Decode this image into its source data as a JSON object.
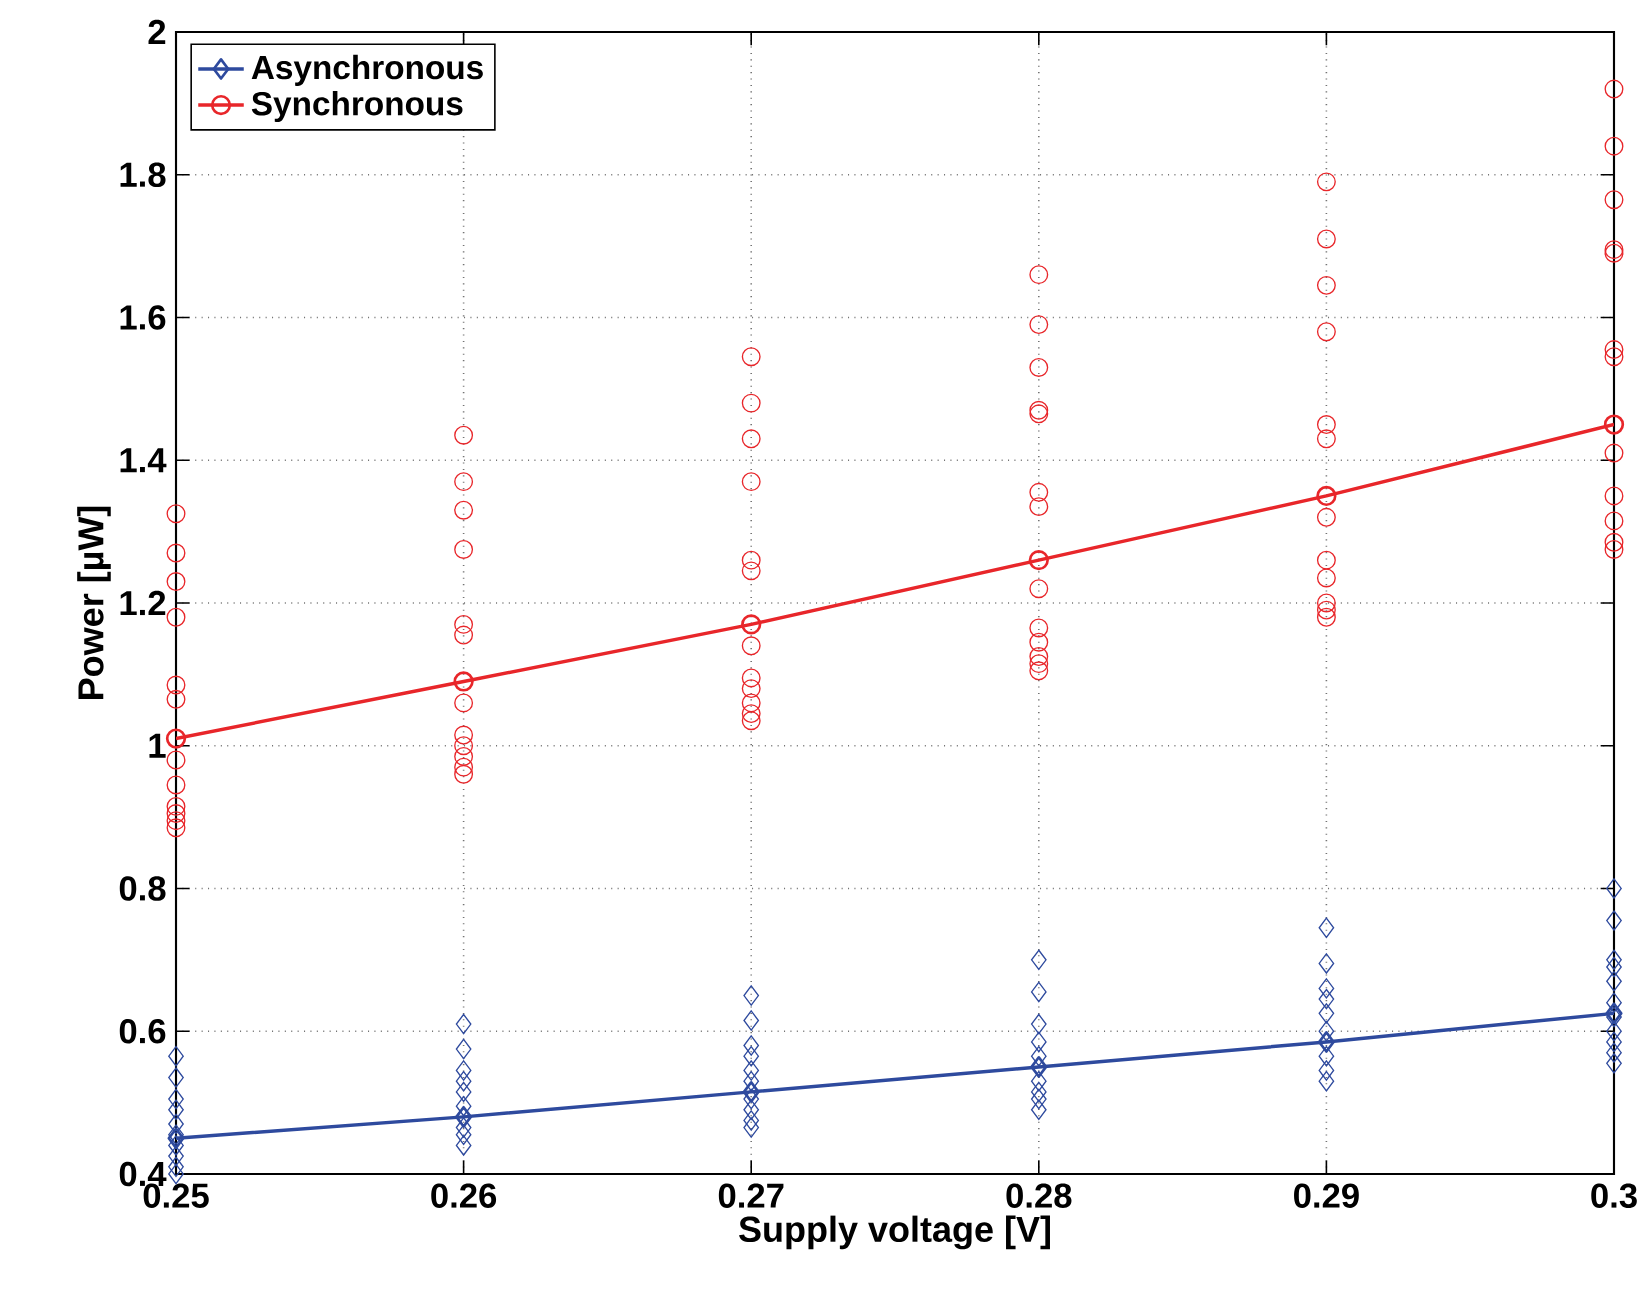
{
  "chart_data": {
    "type": "line",
    "xlabel": "Supply voltage [V]",
    "ylabel": "Power [µW]",
    "xlim": [
      0.25,
      0.3
    ],
    "xticks": [
      0.25,
      0.26,
      0.27,
      0.28,
      0.29,
      0.3
    ],
    "ylim": [
      0.4,
      2
    ],
    "yticks": [
      0.4,
      0.6,
      0.8,
      1,
      1.2,
      1.4,
      1.6,
      1.8,
      2
    ],
    "grid": true,
    "legend": "top left",
    "line_style": "solid",
    "series": [
      {
        "type": "scatter",
        "color": "#2e4a9e",
        "marker": "diamond",
        "x": [
          0.25,
          0.25,
          0.25,
          0.25,
          0.25,
          0.25,
          0.25,
          0.25,
          0.25,
          0.25,
          0.26,
          0.26,
          0.26,
          0.26,
          0.26,
          0.26,
          0.26,
          0.26,
          0.26,
          0.26,
          0.27,
          0.27,
          0.27,
          0.27,
          0.27,
          0.27,
          0.27,
          0.27,
          0.27,
          0.27,
          0.28,
          0.28,
          0.28,
          0.28,
          0.28,
          0.28,
          0.28,
          0.28,
          0.28,
          0.29,
          0.29,
          0.29,
          0.29,
          0.29,
          0.29,
          0.29,
          0.29,
          0.29,
          0.3,
          0.3,
          0.3,
          0.3,
          0.3,
          0.3,
          0.3,
          0.3,
          0.3,
          0.3,
          0.3
        ],
        "values": [
          0.565,
          0.535,
          0.505,
          0.49,
          0.47,
          0.455,
          0.44,
          0.425,
          0.41,
          0.4,
          0.61,
          0.575,
          0.545,
          0.53,
          0.515,
          0.495,
          0.48,
          0.465,
          0.455,
          0.44,
          0.65,
          0.615,
          0.58,
          0.565,
          0.545,
          0.53,
          0.505,
          0.49,
          0.475,
          0.465,
          0.7,
          0.655,
          0.61,
          0.585,
          0.565,
          0.53,
          0.515,
          0.505,
          0.49,
          0.745,
          0.695,
          0.66,
          0.645,
          0.625,
          0.6,
          0.565,
          0.545,
          0.53,
          0.8,
          0.755,
          0.7,
          0.69,
          0.67,
          0.64,
          0.62,
          0.6,
          0.585,
          0.57,
          0.555
        ]
      },
      {
        "type": "scatter",
        "color": "#e8262a",
        "marker": "circle",
        "x": [
          0.25,
          0.25,
          0.25,
          0.25,
          0.25,
          0.25,
          0.25,
          0.25,
          0.25,
          0.25,
          0.25,
          0.25,
          0.26,
          0.26,
          0.26,
          0.26,
          0.26,
          0.26,
          0.26,
          0.26,
          0.26,
          0.26,
          0.26,
          0.26,
          0.27,
          0.27,
          0.27,
          0.27,
          0.27,
          0.27,
          0.27,
          0.27,
          0.27,
          0.27,
          0.27,
          0.27,
          0.28,
          0.28,
          0.28,
          0.28,
          0.28,
          0.28,
          0.28,
          0.28,
          0.28,
          0.28,
          0.28,
          0.28,
          0.28,
          0.29,
          0.29,
          0.29,
          0.29,
          0.29,
          0.29,
          0.29,
          0.29,
          0.29,
          0.29,
          0.29,
          0.29,
          0.3,
          0.3,
          0.3,
          0.3,
          0.3,
          0.3,
          0.3,
          0.3,
          0.3,
          0.3,
          0.3,
          0.3
        ],
        "values": [
          1.325,
          1.27,
          1.23,
          1.18,
          1.085,
          1.065,
          0.98,
          0.945,
          0.915,
          0.905,
          0.895,
          0.885,
          1.435,
          1.37,
          1.33,
          1.275,
          1.17,
          1.155,
          1.06,
          1.015,
          1.0,
          0.985,
          0.97,
          0.96,
          1.545,
          1.48,
          1.43,
          1.37,
          1.26,
          1.245,
          1.14,
          1.095,
          1.08,
          1.06,
          1.045,
          1.035,
          1.66,
          1.59,
          1.53,
          1.47,
          1.465,
          1.355,
          1.335,
          1.22,
          1.165,
          1.145,
          1.125,
          1.115,
          1.105,
          1.79,
          1.71,
          1.645,
          1.58,
          1.45,
          1.43,
          1.32,
          1.26,
          1.235,
          1.2,
          1.19,
          1.18,
          1.92,
          1.84,
          1.765,
          1.695,
          1.69,
          1.555,
          1.545,
          1.41,
          1.35,
          1.315,
          1.285,
          1.275
        ]
      },
      {
        "name": "Asynchronous",
        "color": "#2e4a9e",
        "marker": "diamond",
        "x": [
          0.25,
          0.26,
          0.27,
          0.28,
          0.29,
          0.3
        ],
        "values": [
          0.45,
          0.48,
          0.515,
          0.55,
          0.585,
          0.625
        ]
      },
      {
        "name": "Synchronous",
        "color": "#e8262a",
        "marker": "circle",
        "x": [
          0.25,
          0.26,
          0.27,
          0.28,
          0.29,
          0.3
        ],
        "values": [
          1.01,
          1.09,
          1.17,
          1.26,
          1.35,
          1.45
        ]
      }
    ]
  }
}
